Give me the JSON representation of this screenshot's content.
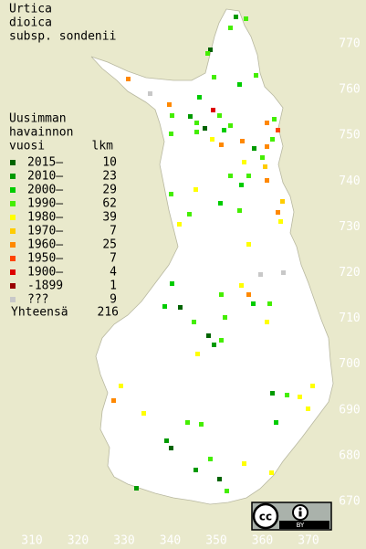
{
  "title": [
    "Urtica",
    "dioica",
    "subsp. sondenii"
  ],
  "legend": {
    "header": [
      "Uusimman",
      "havainnon"
    ],
    "year_heading": "vuosi",
    "count_heading": "lkm",
    "rows": [
      {
        "label": "2015–",
        "count": 10,
        "color": "#006400"
      },
      {
        "label": "2010–",
        "count": 23,
        "color": "#009a00"
      },
      {
        "label": "2000–",
        "count": 29,
        "color": "#00cc00"
      },
      {
        "label": "1990–",
        "count": 62,
        "color": "#44ee00"
      },
      {
        "label": "1980–",
        "count": 39,
        "color": "#ffff00"
      },
      {
        "label": "1970–",
        "count": 7,
        "color": "#ffcc00"
      },
      {
        "label": "1960–",
        "count": 25,
        "color": "#ff8800"
      },
      {
        "label": "1950–",
        "count": 7,
        "color": "#ff4400"
      },
      {
        "label": "1900–",
        "count": 4,
        "color": "#dd0000"
      },
      {
        "label": "-1899",
        "count": 1,
        "color": "#990000"
      },
      {
        "label": "???",
        "count": 9,
        "color": "#c8c8c8"
      }
    ],
    "total_label": "Yhteensä",
    "total": 216
  },
  "grid": {
    "x_labels": [
      310,
      320,
      330,
      340,
      350,
      360,
      370
    ],
    "y_labels": [
      670,
      680,
      690,
      700,
      710,
      720,
      730,
      740,
      750,
      760,
      770
    ]
  },
  "license": {
    "cc": "cc",
    "by": "BY"
  }
}
